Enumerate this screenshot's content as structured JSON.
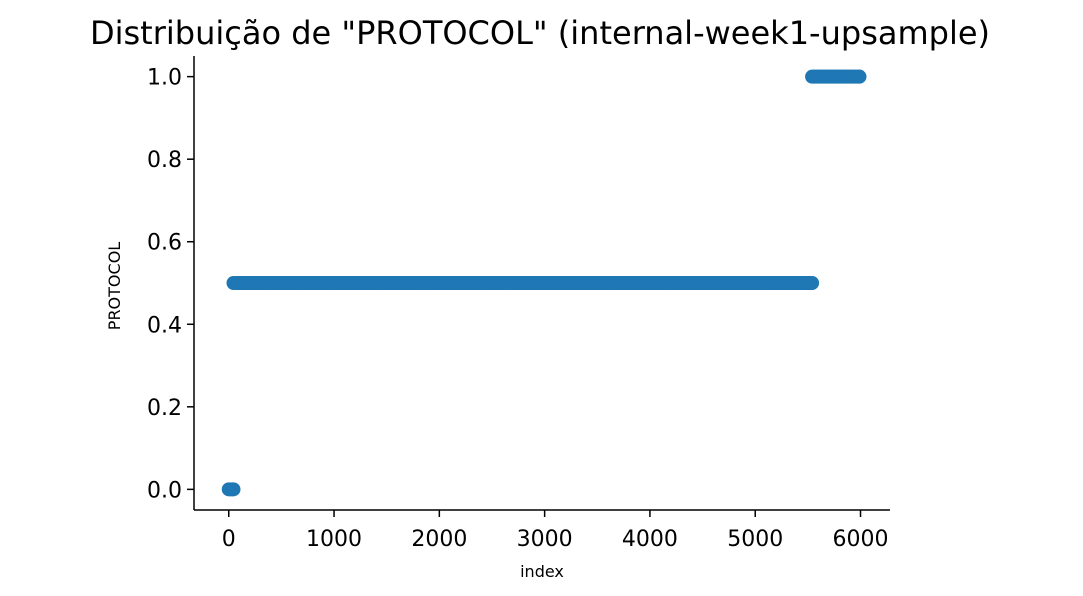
{
  "chart_data": {
    "type": "scatter",
    "title": "Distribuição de \"PROTOCOL\" (internal-week1-upsample)",
    "xlabel": "index",
    "ylabel": "PROTOCOL",
    "xlim": [
      -330,
      6280
    ],
    "ylim": [
      -0.05,
      1.05
    ],
    "xticks": [
      0,
      1000,
      2000,
      3000,
      4000,
      5000,
      6000
    ],
    "xtick_labels": [
      "0",
      "1000",
      "2000",
      "3000",
      "4000",
      "5000",
      "6000"
    ],
    "yticks": [
      0.0,
      0.2,
      0.4,
      0.6,
      0.8,
      1.0
    ],
    "ytick_labels": [
      "0.0",
      "0.2",
      "0.4",
      "0.6",
      "0.8",
      "1.0"
    ],
    "grid": false,
    "spines": [
      "left",
      "bottom"
    ],
    "marker_color": "#1f77b4",
    "series": [
      {
        "points": [
          {
            "x_from": 0,
            "x_to": 45,
            "y": 0.0
          },
          {
            "x_from": 45,
            "x_to": 5540,
            "y": 0.5
          },
          {
            "x_from": 5540,
            "x_to": 5990,
            "y": 1.0
          }
        ]
      }
    ]
  }
}
